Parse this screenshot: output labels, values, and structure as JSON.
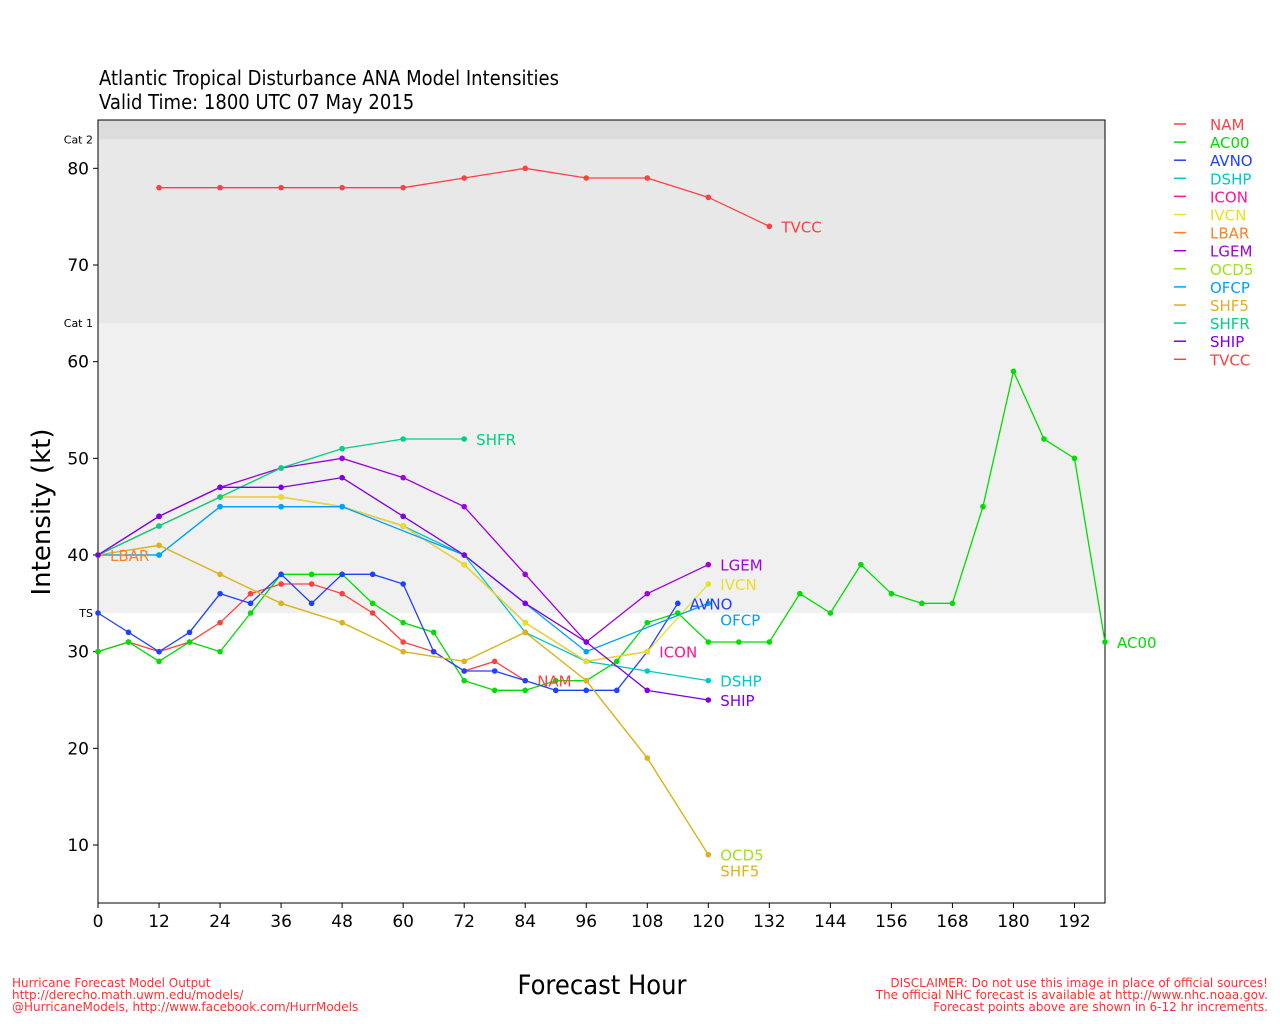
{
  "chart_data": {
    "type": "line",
    "title": "Atlantic Tropical Disturbance ANA Model Intensities",
    "subtitle": "Valid Time: 1800 UTC 07 May 2015",
    "xlabel": "Forecast Hour",
    "ylabel": "Intensity (kt)",
    "xlim": [
      0,
      198
    ],
    "ylim": [
      4,
      85
    ],
    "x_ticks": [
      0,
      12,
      24,
      36,
      48,
      60,
      72,
      84,
      96,
      108,
      120,
      132,
      144,
      156,
      168,
      180,
      192
    ],
    "y_ticks": [
      10,
      20,
      30,
      40,
      50,
      60,
      70,
      80
    ],
    "category_bands": [
      {
        "label": "TS",
        "from": 34,
        "to": 64,
        "color": "#f0f0f0"
      },
      {
        "label": "Cat 1",
        "from": 64,
        "to": 83,
        "color": "#e8e8e8"
      },
      {
        "label": "Cat 2",
        "from": 83,
        "to": 85,
        "color": "#dcdcdc"
      }
    ],
    "legend_position": "right",
    "grid": false,
    "series": [
      {
        "name": "NAM",
        "color": "#ff4040",
        "x": [
          0,
          6,
          12,
          18,
          24,
          30,
          36,
          42,
          48,
          54,
          60,
          66,
          72,
          78,
          84
        ],
        "y": [
          30,
          31,
          30,
          31,
          33,
          36,
          37,
          37,
          36,
          34,
          31,
          30,
          28,
          29,
          27
        ]
      },
      {
        "name": "AC00",
        "color": "#00dd00",
        "x": [
          0,
          6,
          12,
          18,
          24,
          30,
          36,
          42,
          48,
          54,
          60,
          66,
          72,
          78,
          84,
          90,
          96,
          102,
          108,
          114,
          120,
          126,
          132,
          138,
          144,
          150,
          156,
          162,
          168,
          174,
          180,
          186,
          192,
          198
        ],
        "y": [
          30,
          31,
          29,
          31,
          30,
          34,
          38,
          38,
          38,
          35,
          33,
          32,
          27,
          26,
          26,
          27,
          27,
          29,
          33,
          34,
          31,
          31,
          31,
          36,
          34,
          39,
          36,
          35,
          35,
          45,
          59,
          52,
          50,
          31
        ]
      },
      {
        "name": "AVNO",
        "color": "#2040ff",
        "x": [
          0,
          6,
          12,
          18,
          24,
          30,
          36,
          42,
          48,
          54,
          60,
          66,
          72,
          78,
          84,
          90,
          96,
          102,
          108,
          114
        ],
        "y": [
          34,
          32,
          30,
          32,
          36,
          35,
          38,
          35,
          38,
          38,
          37,
          30,
          28,
          28,
          27,
          26,
          26,
          26,
          30,
          35
        ]
      },
      {
        "name": "DSHP",
        "color": "#00c8c8",
        "x": [
          0,
          12,
          24,
          36,
          48,
          60,
          72,
          84,
          96,
          108,
          120
        ],
        "y": [
          40,
          40,
          45,
          45,
          45,
          43,
          40,
          32,
          29,
          28,
          27
        ]
      },
      {
        "name": "ICON",
        "color": "#ff1493",
        "x": [
          0,
          12,
          24,
          36,
          48,
          60,
          72,
          84,
          96,
          108
        ],
        "y": [
          40,
          43,
          46,
          46,
          45,
          43,
          39,
          33,
          29,
          30
        ]
      },
      {
        "name": "IVCN",
        "color": "#e8e020",
        "x": [
          0,
          12,
          24,
          36,
          48,
          60,
          72,
          84,
          96,
          108,
          120
        ],
        "y": [
          40,
          43,
          46,
          46,
          45,
          43,
          39,
          33,
          29,
          30,
          37
        ]
      },
      {
        "name": "LBAR",
        "color": "#ff8020",
        "x": [
          0
        ],
        "y": [
          40
        ]
      },
      {
        "name": "LGEM",
        "color": "#a000e0",
        "x": [
          0,
          12,
          24,
          36,
          48,
          60,
          72,
          84,
          96,
          108,
          120
        ],
        "y": [
          40,
          44,
          47,
          49,
          50,
          48,
          45,
          38,
          31,
          36,
          39
        ]
      },
      {
        "name": "OCD5",
        "color": "#a0e020",
        "x": [
          0,
          12,
          24,
          36,
          48,
          60,
          72,
          84,
          96,
          108,
          120
        ],
        "y": [
          40,
          41,
          38,
          35,
          33,
          30,
          29,
          32,
          27,
          19,
          9
        ]
      },
      {
        "name": "OFCP",
        "color": "#00a0ff",
        "x": [
          0,
          12,
          24,
          36,
          48,
          72,
          96,
          120
        ],
        "y": [
          40,
          40,
          45,
          45,
          45,
          40,
          30,
          35
        ]
      },
      {
        "name": "SHF5",
        "color": "#e0b020",
        "x": [
          0,
          12,
          24,
          36,
          48,
          60,
          72,
          84,
          96,
          108,
          120
        ],
        "y": [
          40,
          41,
          38,
          35,
          33,
          30,
          29,
          32,
          27,
          19,
          9
        ]
      },
      {
        "name": "SHFR",
        "color": "#00d080",
        "x": [
          0,
          12,
          24,
          36,
          48,
          60,
          72
        ],
        "y": [
          40,
          43,
          46,
          49,
          51,
          52,
          52
        ]
      },
      {
        "name": "SHIP",
        "color": "#8000e0",
        "x": [
          0,
          12,
          24,
          36,
          48,
          60,
          72,
          84,
          96,
          108,
          120
        ],
        "y": [
          40,
          44,
          47,
          47,
          48,
          44,
          40,
          35,
          31,
          26,
          25
        ]
      },
      {
        "name": "TVCC",
        "color": "#ff4040",
        "x": [
          12,
          24,
          36,
          48,
          60,
          72,
          84,
          96,
          108,
          120,
          132
        ],
        "y": [
          78,
          78,
          78,
          78,
          78,
          79,
          80,
          79,
          79,
          77,
          74
        ]
      }
    ]
  },
  "footer": {
    "left": [
      "Hurricane Forecast Model Output",
      "http://derecho.math.uwm.edu/models/",
      "@HurricaneModels, http://www.facebook.com/HurrModels"
    ],
    "right": [
      "DISCLAIMER: Do not use this image in place of official sources!",
      "The official NHC forecast is available at http://www.nhc.noaa.gov.",
      "Forecast points above are shown in 6-12 hr increments."
    ]
  }
}
